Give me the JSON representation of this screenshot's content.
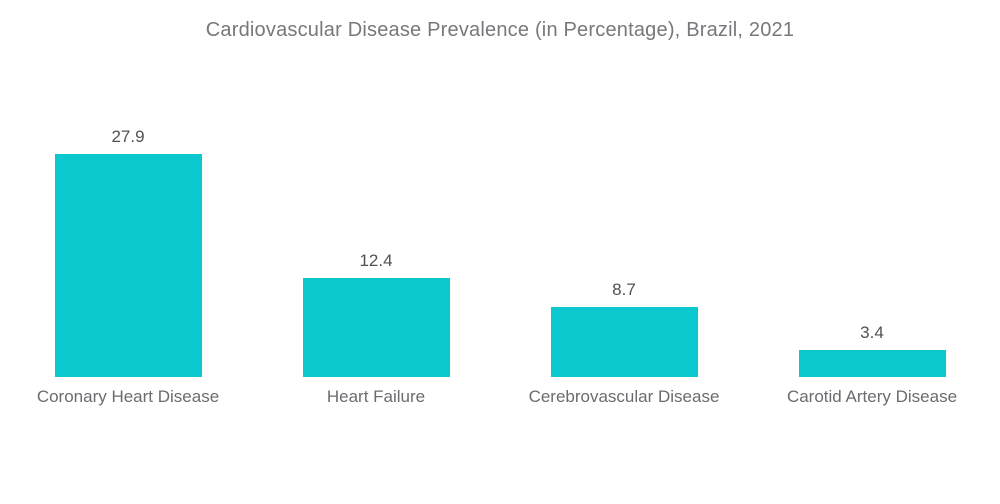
{
  "title": "Cardiovascular Disease Prevalence (in Percentage), Brazil, 2021",
  "chart_data": {
    "type": "bar",
    "title": "Cardiovascular Disease Prevalence (in Percentage), Brazil, 2021",
    "categories": [
      "Coronary Heart Disease",
      "Heart Failure",
      "Cerebrovascular Disease",
      "Carotid Artery Disease"
    ],
    "values": [
      27.9,
      12.4,
      8.7,
      3.4
    ],
    "value_labels": [
      "27.9",
      "12.4",
      "8.7",
      "3.4"
    ],
    "xlabel": "",
    "ylabel": "",
    "ylim": [
      0,
      30
    ],
    "grid": false,
    "legend_position": "none",
    "orientation": "vertical"
  },
  "colors": {
    "bar": "#0AC8CE",
    "background": "#FFFFFF",
    "title_text": "#77787B",
    "value_text": "#505156",
    "category_text": "#6B6C6F"
  }
}
